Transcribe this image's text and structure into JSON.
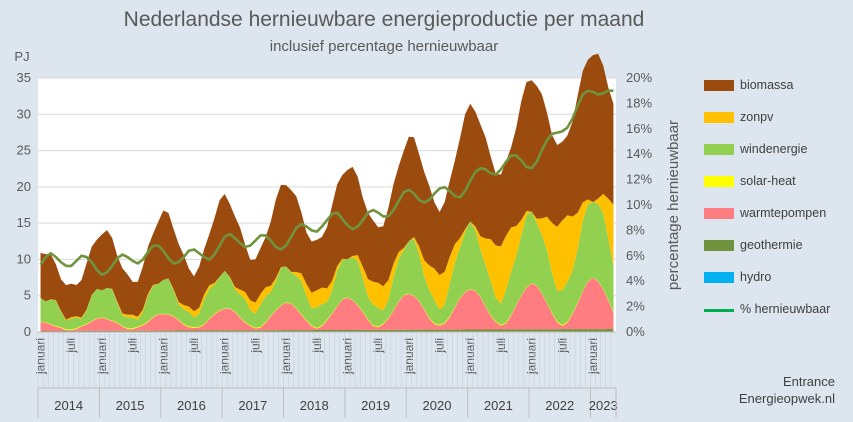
{
  "title": "Nederlandse hernieuwbare energieproductie per maand",
  "subtitle": "inclusief percentage hernieuwbaar",
  "footer": {
    "line1": "Entrance",
    "line2": "Energieopwek.nl"
  },
  "colors": {
    "biomassa": "#9c4b0f",
    "zonpv": "#ffc000",
    "windenergie": "#92d050",
    "solar_heat": "#ffff00",
    "warmtepompen": "#ff7c80",
    "geothermie": "#70933d",
    "hydro": "#00b0f0",
    "pct": "#70933d",
    "pct_legend": "#00b050",
    "grid": "#d9d9d9",
    "plot_bg": "#ffffff"
  },
  "chart_data": {
    "type": "area",
    "xlabel": "",
    "ylabel_left": "PJ",
    "ylabel_right": "percentage hernieuwbaar",
    "ylim_left": [
      0,
      35
    ],
    "yticks_left": [
      "0",
      "5",
      "10",
      "15",
      "20",
      "25",
      "30",
      "35"
    ],
    "ylim_right": [
      0,
      20
    ],
    "yticks_right": [
      "0%",
      "2%",
      "4%",
      "6%",
      "8%",
      "10%",
      "12%",
      "14%",
      "16%",
      "18%",
      "20%"
    ],
    "month_tick_labels": [
      "januari",
      "juli"
    ],
    "years": [
      "2014",
      "2015",
      "2016",
      "2017",
      "2018",
      "2019",
      "2020",
      "2021",
      "2022",
      "2023"
    ],
    "months_in_last_year": 5,
    "stacked": true,
    "series": [
      {
        "name": "hydro",
        "key": "hydro",
        "values": []
      },
      {
        "name": "geothermie",
        "key": "geothermie",
        "values": []
      },
      {
        "name": "warmtepompen",
        "key": "warmtepompen",
        "values": []
      },
      {
        "name": "solar-heat",
        "key": "solar_heat",
        "values": []
      },
      {
        "name": "windenergie",
        "key": "windenergie",
        "values": []
      },
      {
        "name": "zonpv",
        "key": "zonpv",
        "values": []
      },
      {
        "name": "biomassa",
        "key": "biomassa",
        "values": []
      }
    ],
    "line": {
      "name": "% hernieuwbaar",
      "axis": "right",
      "values": []
    },
    "legend_order": [
      "biomassa",
      "zonpv",
      "windenergie",
      "solar-heat",
      "warmtepompen",
      "geothermie",
      "hydro",
      "% hernieuwbaar"
    ],
    "legend_position": "right"
  }
}
